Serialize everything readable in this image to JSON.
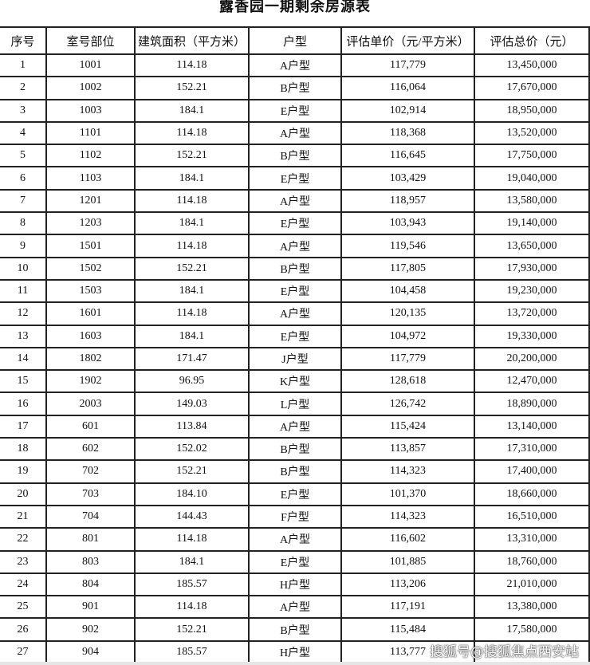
{
  "title": "露香园一期剩余房源表",
  "columns": [
    "序号",
    "室号部位",
    "建筑面积（平方米）",
    "户型",
    "评估单价（元/平方米）",
    "评估总价（元）"
  ],
  "rows": [
    [
      "1",
      "1001",
      "114.18",
      "A户型",
      "117,779",
      "13,450,000"
    ],
    [
      "2",
      "1002",
      "152.21",
      "B户型",
      "116,064",
      "17,670,000"
    ],
    [
      "3",
      "1003",
      "184.1",
      "E户型",
      "102,914",
      "18,950,000"
    ],
    [
      "4",
      "1101",
      "114.18",
      "A户型",
      "118,368",
      "13,520,000"
    ],
    [
      "5",
      "1102",
      "152.21",
      "B户型",
      "116,645",
      "17,750,000"
    ],
    [
      "6",
      "1103",
      "184.1",
      "E户型",
      "103,429",
      "19,040,000"
    ],
    [
      "7",
      "1201",
      "114.18",
      "A户型",
      "118,957",
      "13,580,000"
    ],
    [
      "8",
      "1203",
      "184.1",
      "E户型",
      "103,943",
      "19,140,000"
    ],
    [
      "9",
      "1501",
      "114.18",
      "A户型",
      "119,546",
      "13,650,000"
    ],
    [
      "10",
      "1502",
      "152.21",
      "B户型",
      "117,805",
      "17,930,000"
    ],
    [
      "11",
      "1503",
      "184.1",
      "E户型",
      "104,458",
      "19,230,000"
    ],
    [
      "12",
      "1601",
      "114.18",
      "A户型",
      "120,135",
      "13,720,000"
    ],
    [
      "13",
      "1603",
      "184.1",
      "E户型",
      "104,972",
      "19,330,000"
    ],
    [
      "14",
      "1802",
      "171.47",
      "J户型",
      "117,779",
      "20,200,000"
    ],
    [
      "15",
      "1902",
      "96.95",
      "K户型",
      "128,618",
      "12,470,000"
    ],
    [
      "16",
      "2003",
      "149.03",
      "L户型",
      "126,742",
      "18,890,000"
    ],
    [
      "17",
      "601",
      "113.84",
      "A户型",
      "115,424",
      "13,140,000"
    ],
    [
      "18",
      "602",
      "152.02",
      "B户型",
      "113,857",
      "17,310,000"
    ],
    [
      "19",
      "702",
      "152.21",
      "B户型",
      "114,323",
      "17,400,000"
    ],
    [
      "20",
      "703",
      "184.10",
      "E户型",
      "101,370",
      "18,660,000"
    ],
    [
      "21",
      "704",
      "144.43",
      "F户型",
      "114,323",
      "16,510,000"
    ],
    [
      "22",
      "801",
      "114.18",
      "A户型",
      "116,602",
      "13,310,000"
    ],
    [
      "23",
      "803",
      "184.1",
      "E户型",
      "101,885",
      "18,760,000"
    ],
    [
      "24",
      "804",
      "185.57",
      "H户型",
      "113,206",
      "21,010,000"
    ],
    [
      "25",
      "901",
      "114.18",
      "A户型",
      "117,191",
      "13,380,000"
    ],
    [
      "26",
      "902",
      "152.21",
      "B户型",
      "115,484",
      "17,580,000"
    ],
    [
      "27",
      "904",
      "185.57",
      "H户型",
      "113,777",
      ""
    ]
  ],
  "watermark": "搜狐号@搜狐焦点西安站"
}
